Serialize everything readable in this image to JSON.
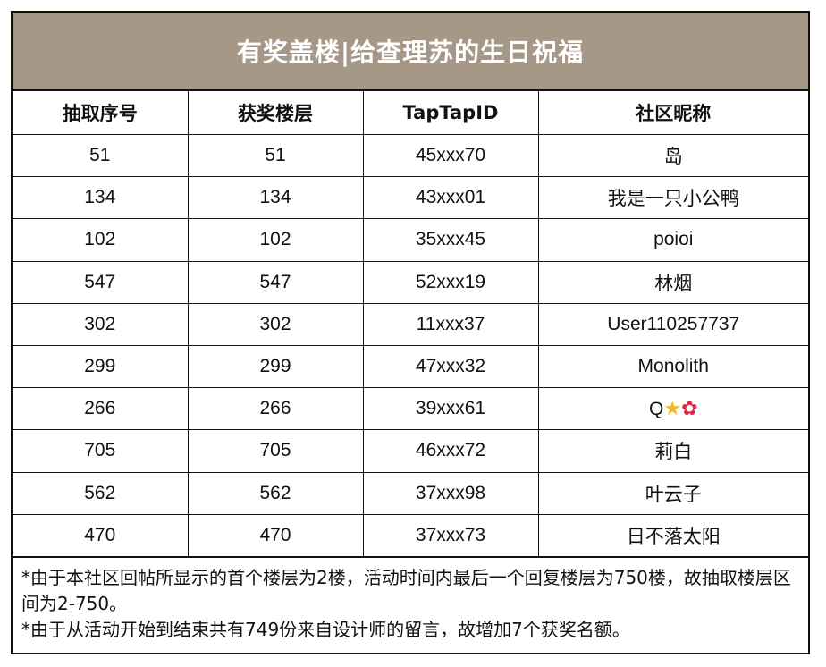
{
  "title": "有奖盖楼|给查理苏的生日祝福",
  "headers": [
    "抽取序号",
    "获奖楼层",
    "TapTapID",
    "社区昵称"
  ],
  "rows": [
    [
      "51",
      "51",
      "45xxx70",
      "岛"
    ],
    [
      "134",
      "134",
      "43xxx01",
      "我是一只小公鸭"
    ],
    [
      "102",
      "102",
      "35xxx45",
      "poioi"
    ],
    [
      "547",
      "547",
      "52xxx19",
      "林烟"
    ],
    [
      "302",
      "302",
      "11xxx37",
      "User110257737"
    ],
    [
      "299",
      "299",
      "47xxx32",
      "Monolith"
    ],
    [
      "266",
      "266",
      "39xxx61",
      "Q"
    ],
    [
      "705",
      "705",
      "46xxx72",
      "莉白"
    ],
    [
      "562",
      "562",
      "37xxx98",
      "叶云子"
    ],
    [
      "470",
      "470",
      "37xxx73",
      "日不落太阳"
    ]
  ],
  "emoji": [
    "star-emoji",
    "hibiscus-emoji"
  ],
  "notes": [
    "*由于本社区回帖所显示的首个楼层为2楼，活动时间内最后一个回复楼层为750楼，故抽取楼层区间为2-750。",
    "*由于从活动开始到结束共有749份来自设计师的留言，故增加7个获奖名额。"
  ],
  "colors": {
    "title_bg": "#a69886",
    "title_text": "#ffffff",
    "border": "#111111"
  }
}
